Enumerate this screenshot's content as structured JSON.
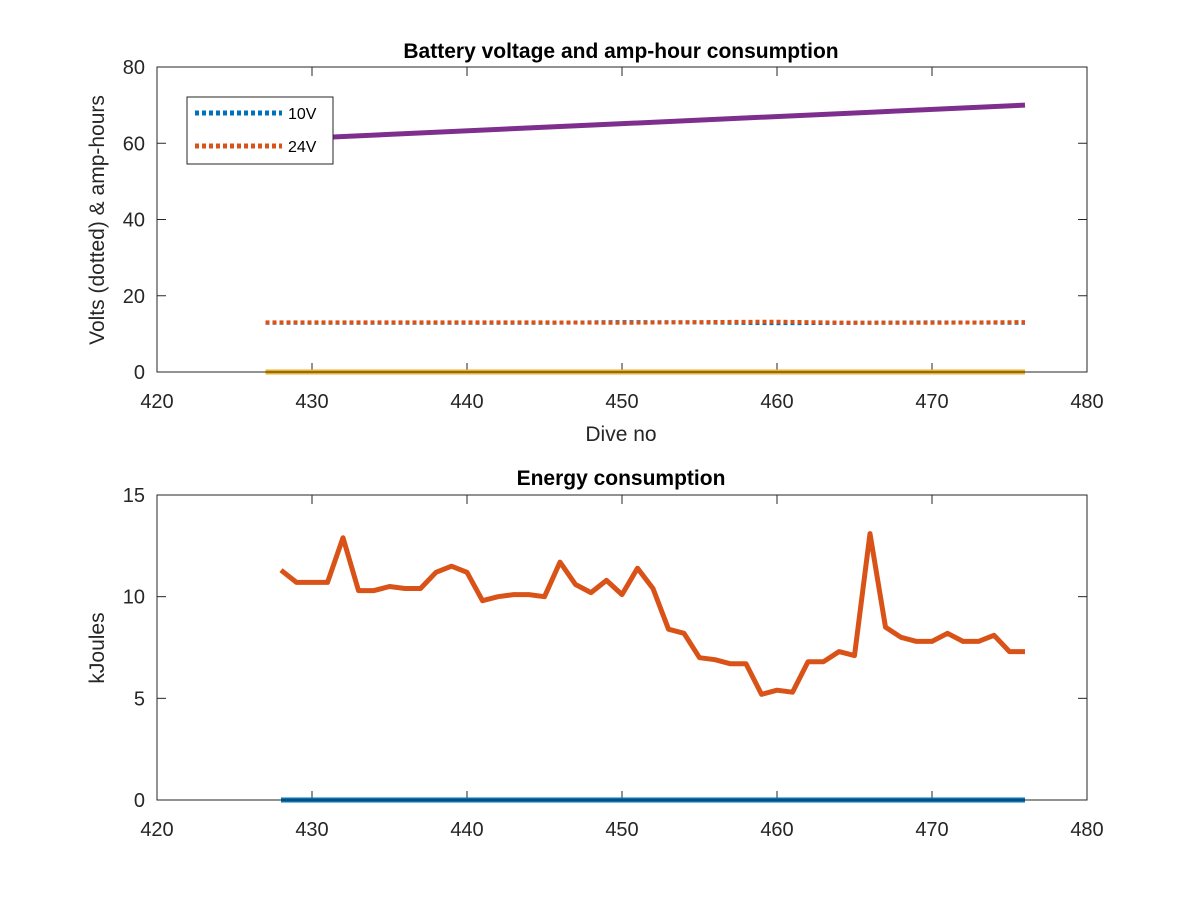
{
  "chart_data": [
    {
      "type": "line",
      "title": "Battery voltage and amp-hour consumption",
      "xlabel": "Dive no",
      "ylabel": "Volts (dotted) & amp-hours",
      "xlim": [
        420,
        480
      ],
      "ylim": [
        0,
        80
      ],
      "xticks": [
        420,
        430,
        440,
        450,
        460,
        470,
        480
      ],
      "yticks": [
        0,
        20,
        40,
        60,
        80
      ],
      "grid": false,
      "legend": {
        "position": "top-left",
        "entries": [
          "10V",
          "24V"
        ]
      },
      "series": [
        {
          "name": "10V",
          "style": "dotted",
          "color": "#0072BD",
          "x": [
            427,
            435,
            445,
            450,
            455,
            460,
            465,
            470,
            476
          ],
          "y": [
            12.9,
            12.9,
            12.9,
            13.1,
            13.0,
            12.8,
            12.9,
            13.0,
            12.9
          ]
        },
        {
          "name": "24V",
          "style": "dotted",
          "color": "#D95319",
          "x": [
            427,
            435,
            445,
            450,
            455,
            460,
            465,
            470,
            476
          ],
          "y": [
            13.0,
            13.0,
            13.0,
            12.9,
            13.1,
            13.2,
            12.9,
            12.9,
            13.1
          ]
        },
        {
          "style": "solid",
          "color": "#7E2F8E",
          "x": [
            428,
            476
          ],
          "y": [
            61,
            70
          ]
        },
        {
          "style": "solid",
          "color": "#EDB120",
          "x": [
            427,
            476
          ],
          "y": [
            0,
            0
          ]
        }
      ]
    },
    {
      "type": "line",
      "title": "Energy consumption",
      "xlabel": "",
      "ylabel": "kJoules",
      "xlim": [
        420,
        480
      ],
      "ylim": [
        0,
        15
      ],
      "xticks": [
        420,
        430,
        440,
        450,
        460,
        470,
        480
      ],
      "yticks": [
        0,
        5,
        10,
        15
      ],
      "grid": false,
      "series": [
        {
          "style": "solid",
          "color": "#0072BD",
          "x": [
            428,
            476
          ],
          "y": [
            0,
            0
          ]
        },
        {
          "style": "solid",
          "color": "#D95319",
          "x": [
            428,
            429,
            430,
            431,
            432,
            433,
            434,
            435,
            436,
            437,
            438,
            439,
            440,
            441,
            442,
            443,
            444,
            445,
            446,
            447,
            448,
            449,
            450,
            451,
            452,
            453,
            454,
            455,
            456,
            457,
            458,
            459,
            460,
            461,
            462,
            463,
            464,
            465,
            466,
            467,
            468,
            469,
            470,
            471,
            472,
            473,
            474,
            475,
            476
          ],
          "y": [
            11.3,
            10.7,
            10.7,
            10.7,
            12.9,
            10.3,
            10.3,
            10.5,
            10.4,
            10.4,
            11.2,
            11.5,
            11.2,
            9.8,
            10.0,
            10.1,
            10.1,
            10.0,
            11.7,
            10.6,
            10.2,
            10.8,
            10.1,
            11.4,
            10.4,
            8.4,
            8.2,
            7.0,
            6.9,
            6.7,
            6.7,
            5.2,
            5.4,
            5.3,
            6.8,
            6.8,
            7.3,
            7.1,
            13.1,
            8.5,
            8.0,
            7.8,
            7.8,
            8.2,
            7.8,
            7.8,
            8.1,
            7.3,
            7.3
          ]
        }
      ]
    }
  ]
}
